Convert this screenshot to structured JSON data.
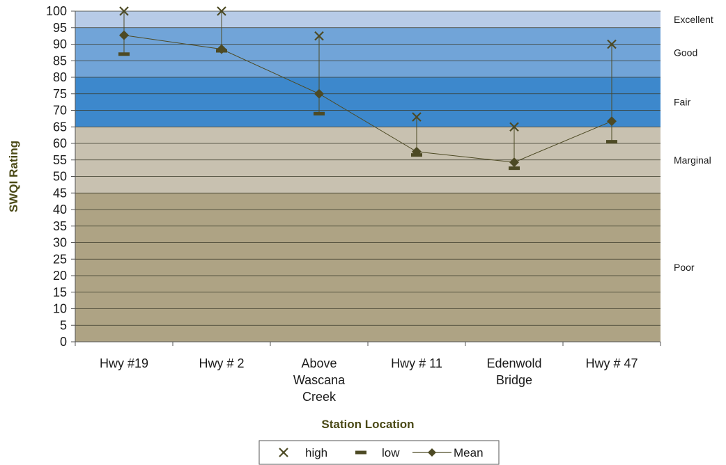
{
  "chart_data": {
    "type": "line",
    "title": "",
    "xlabel": "Station Location",
    "ylabel": "SWQI Rating",
    "ylim": [
      0,
      100
    ],
    "ytick_step": 5,
    "grid": true,
    "legend_placement": "bottom-center",
    "categories": [
      [
        "Hwy #19"
      ],
      [
        "Hwy # 2"
      ],
      [
        "Above",
        "Wascana",
        "Creek"
      ],
      [
        "Hwy # 11"
      ],
      [
        "Edenwold",
        "Bridge"
      ],
      [
        "Hwy # 47"
      ]
    ],
    "series": [
      {
        "name": "high",
        "values": [
          100,
          100,
          92.5,
          68,
          65,
          90
        ],
        "marker": "x"
      },
      {
        "name": "low",
        "values": [
          87,
          88,
          69,
          56.5,
          52.5,
          60.5
        ],
        "marker": "dash"
      },
      {
        "name": "Mean",
        "values": [
          92.7,
          88.5,
          75,
          57.5,
          54.3,
          66.7
        ],
        "marker": "diamond"
      }
    ],
    "bands": [
      {
        "label": "Excellent",
        "from": 95,
        "to": 100,
        "color": "#b7cbe7"
      },
      {
        "label": "Good",
        "from": 80,
        "to": 95,
        "color": "#71a4d8"
      },
      {
        "label": "Fair",
        "from": 65,
        "to": 80,
        "color": "#3d88cc"
      },
      {
        "label": "Marginal",
        "from": 45,
        "to": 65,
        "color": "#c8c1b0"
      },
      {
        "label": "Poor",
        "from": 0,
        "to": 45,
        "color": "#aea384"
      }
    ],
    "colors": {
      "marker": "#4d4a24",
      "line": "#4d4a24",
      "grid": "#3a3a2a",
      "axis_title": "#4b4a17"
    }
  }
}
